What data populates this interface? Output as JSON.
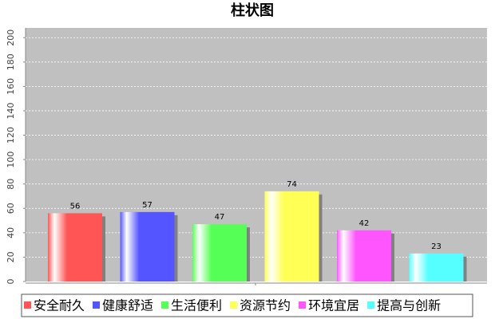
{
  "chart_data": {
    "type": "bar",
    "title": "柱状图",
    "categories": [
      null
    ],
    "series": [
      {
        "name": "安全耐久",
        "color": "#ff5555",
        "values": [
          56
        ]
      },
      {
        "name": "健康舒适",
        "color": "#5555ff",
        "values": [
          57
        ]
      },
      {
        "name": "生活便利",
        "color": "#55ff55",
        "values": [
          47
        ]
      },
      {
        "name": "资源节约",
        "color": "#ffff55",
        "values": [
          74
        ]
      },
      {
        "name": "环境宜居",
        "color": "#ff55ff",
        "values": [
          42
        ]
      },
      {
        "name": "提高与创新",
        "color": "#55ffff",
        "values": [
          23
        ]
      }
    ],
    "ylim": [
      0,
      208
    ],
    "yticks": [
      0,
      20,
      40,
      60,
      80,
      100,
      120,
      140,
      160,
      180,
      200
    ],
    "grid": true,
    "legend": "bottom"
  }
}
